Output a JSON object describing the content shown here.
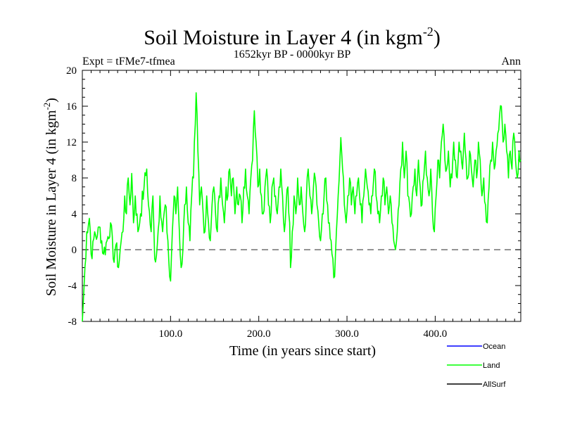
{
  "chart_data": {
    "type": "line",
    "title": "Soil Moisture in Layer 4 (in kgm",
    "title_superscript": "-2",
    "title_close": ")",
    "subtitle": "1652kyr BP - 0000kyr BP",
    "left_label": "Expt = tFMe7-tfmea",
    "right_label": "Ann",
    "xlabel": "Time (in years since start)",
    "ylabel": "Soil Moisture in Layer 4 (in kgm",
    "ylabel_superscript": "-2",
    "ylabel_close": ")",
    "xlim": [
      0,
      497
    ],
    "ylim": [
      -8,
      20
    ],
    "x_ticks": [
      100,
      200,
      300,
      400
    ],
    "x_tick_labels": [
      "100.0",
      "200.0",
      "300.0",
      "400.0"
    ],
    "y_ticks": [
      -8,
      -4,
      0,
      4,
      8,
      12,
      16,
      20
    ],
    "y_tick_labels": [
      "-8",
      "-4",
      "0",
      "4",
      "8",
      "12",
      "16",
      "20"
    ],
    "zero_line": 0,
    "legend": [
      {
        "name": "Ocean",
        "color": "#0000ff"
      },
      {
        "name": "Land",
        "color": "#00ff00"
      },
      {
        "name": "AllSurf",
        "color": "#000000"
      }
    ],
    "series": [
      {
        "name": "Land",
        "color": "#00ff00",
        "anchors": [
          [
            0,
            -8
          ],
          [
            2,
            -4
          ],
          [
            5,
            2
          ],
          [
            8,
            3.5
          ],
          [
            11,
            -1
          ],
          [
            14,
            2
          ],
          [
            17,
            1.5
          ],
          [
            20,
            2.5
          ],
          [
            24,
            -0.5
          ],
          [
            28,
            1
          ],
          [
            32,
            3
          ],
          [
            35,
            -1
          ],
          [
            38,
            0.5
          ],
          [
            41,
            -2
          ],
          [
            44,
            1
          ],
          [
            46,
            2
          ],
          [
            48,
            6
          ],
          [
            50,
            4
          ],
          [
            52,
            8
          ],
          [
            54,
            5
          ],
          [
            56,
            8.5
          ],
          [
            58,
            3
          ],
          [
            60,
            6
          ],
          [
            63,
            2
          ],
          [
            66,
            4
          ],
          [
            70,
            7
          ],
          [
            73,
            9
          ],
          [
            75,
            5
          ],
          [
            78,
            2
          ],
          [
            80,
            6
          ],
          [
            82,
            -1
          ],
          [
            85,
            0.5
          ],
          [
            88,
            6
          ],
          [
            91,
            2
          ],
          [
            94,
            5
          ],
          [
            97,
            1
          ],
          [
            99,
            -3
          ],
          [
            100,
            -3.5
          ],
          [
            102,
            2
          ],
          [
            104,
            6
          ],
          [
            106,
            4
          ],
          [
            108,
            7
          ],
          [
            110,
            2
          ],
          [
            112,
            -2
          ],
          [
            114,
            0
          ],
          [
            116,
            5
          ],
          [
            118,
            7
          ],
          [
            120,
            3
          ],
          [
            122,
            1
          ],
          [
            124,
            6
          ],
          [
            126,
            8
          ],
          [
            128,
            14
          ],
          [
            129,
            17.5
          ],
          [
            131,
            11
          ],
          [
            133,
            5
          ],
          [
            135,
            7
          ],
          [
            137,
            4
          ],
          [
            139,
            2
          ],
          [
            141,
            6
          ],
          [
            143,
            3
          ],
          [
            145,
            1
          ],
          [
            147,
            5
          ],
          [
            149,
            7
          ],
          [
            151,
            4
          ],
          [
            153,
            2
          ],
          [
            155,
            6
          ],
          [
            157,
            8
          ],
          [
            159,
            5
          ],
          [
            161,
            3
          ],
          [
            163,
            7
          ],
          [
            165,
            6
          ],
          [
            167,
            9
          ],
          [
            169,
            6
          ],
          [
            171,
            8
          ],
          [
            173,
            4
          ],
          [
            175,
            7
          ],
          [
            177,
            5
          ],
          [
            179,
            6
          ],
          [
            181,
            3
          ],
          [
            183,
            7
          ],
          [
            185,
            9
          ],
          [
            187,
            6
          ],
          [
            189,
            4
          ],
          [
            191,
            8
          ],
          [
            193,
            10
          ],
          [
            195,
            15.5
          ],
          [
            197,
            12
          ],
          [
            199,
            7
          ],
          [
            201,
            9
          ],
          [
            203,
            6
          ],
          [
            205,
            4
          ],
          [
            207,
            7
          ],
          [
            209,
            9
          ],
          [
            211,
            5
          ],
          [
            213,
            3
          ],
          [
            215,
            7
          ],
          [
            217,
            8
          ],
          [
            219,
            6
          ],
          [
            221,
            4
          ],
          [
            223,
            7
          ],
          [
            225,
            9
          ],
          [
            227,
            6
          ],
          [
            229,
            2
          ],
          [
            231,
            5
          ],
          [
            233,
            7
          ],
          [
            235,
            3
          ],
          [
            236,
            -2
          ],
          [
            238,
            2
          ],
          [
            240,
            6
          ],
          [
            242,
            4
          ],
          [
            244,
            8
          ],
          [
            246,
            5
          ],
          [
            248,
            7
          ],
          [
            250,
            4
          ],
          [
            252,
            2
          ],
          [
            254,
            6
          ],
          [
            256,
            9
          ],
          [
            258,
            6
          ],
          [
            260,
            4
          ],
          [
            262,
            7
          ],
          [
            264,
            8
          ],
          [
            266,
            5
          ],
          [
            268,
            3
          ],
          [
            270,
            1
          ],
          [
            272,
            4
          ],
          [
            274,
            6
          ],
          [
            276,
            8
          ],
          [
            278,
            5
          ],
          [
            280,
            3
          ],
          [
            282,
            1
          ],
          [
            284,
            -1
          ],
          [
            286,
            -3
          ],
          [
            288,
            2
          ],
          [
            290,
            6
          ],
          [
            292,
            10
          ],
          [
            293,
            12.5
          ],
          [
            295,
            9
          ],
          [
            297,
            5
          ],
          [
            299,
            3
          ],
          [
            301,
            6
          ],
          [
            303,
            8
          ],
          [
            305,
            5
          ],
          [
            307,
            7
          ],
          [
            309,
            4
          ],
          [
            311,
            6
          ],
          [
            313,
            8
          ],
          [
            315,
            5
          ],
          [
            317,
            3
          ],
          [
            319,
            6
          ],
          [
            321,
            9
          ],
          [
            323,
            7
          ],
          [
            325,
            5
          ],
          [
            327,
            4
          ],
          [
            329,
            6
          ],
          [
            331,
            9
          ],
          [
            333,
            6
          ],
          [
            335,
            4
          ],
          [
            337,
            3
          ],
          [
            339,
            6
          ],
          [
            341,
            8
          ],
          [
            343,
            5
          ],
          [
            345,
            7
          ],
          [
            347,
            4
          ],
          [
            349,
            6
          ],
          [
            351,
            3
          ],
          [
            353,
            1
          ],
          [
            355,
            0
          ],
          [
            357,
            2
          ],
          [
            359,
            5
          ],
          [
            361,
            9
          ],
          [
            363,
            12
          ],
          [
            365,
            8
          ],
          [
            367,
            11
          ],
          [
            369,
            6
          ],
          [
            371,
            5
          ],
          [
            373,
            4
          ],
          [
            375,
            7
          ],
          [
            377,
            9
          ],
          [
            379,
            6
          ],
          [
            381,
            10
          ],
          [
            383,
            7
          ],
          [
            385,
            5
          ],
          [
            387,
            8
          ],
          [
            389,
            11
          ],
          [
            391,
            8
          ],
          [
            393,
            6
          ],
          [
            395,
            9
          ],
          [
            397,
            4
          ],
          [
            399,
            2
          ],
          [
            401,
            6
          ],
          [
            403,
            10
          ],
          [
            405,
            8
          ],
          [
            407,
            12
          ],
          [
            409,
            14
          ],
          [
            411,
            10
          ],
          [
            413,
            9
          ],
          [
            415,
            11
          ],
          [
            417,
            7
          ],
          [
            419,
            8
          ],
          [
            421,
            12
          ],
          [
            423,
            10
          ],
          [
            425,
            8
          ],
          [
            427,
            12
          ],
          [
            429,
            11
          ],
          [
            431,
            9
          ],
          [
            433,
            13
          ],
          [
            435,
            10
          ],
          [
            437,
            8
          ],
          [
            439,
            11
          ],
          [
            441,
            9
          ],
          [
            443,
            7
          ],
          [
            445,
            10
          ],
          [
            447,
            8
          ],
          [
            449,
            12
          ],
          [
            451,
            10
          ],
          [
            453,
            6
          ],
          [
            455,
            8
          ],
          [
            457,
            5
          ],
          [
            459,
            3
          ],
          [
            461,
            7
          ],
          [
            463,
            10
          ],
          [
            465,
            12
          ],
          [
            467,
            9
          ],
          [
            469,
            11
          ],
          [
            471,
            13
          ],
          [
            473,
            15
          ],
          [
            475,
            16
          ],
          [
            477,
            12
          ],
          [
            479,
            14
          ],
          [
            481,
            11
          ],
          [
            483,
            8
          ],
          [
            485,
            11
          ],
          [
            487,
            9
          ],
          [
            489,
            13
          ],
          [
            491,
            10
          ],
          [
            493,
            8
          ],
          [
            495,
            11
          ],
          [
            497,
            10
          ]
        ]
      }
    ]
  }
}
